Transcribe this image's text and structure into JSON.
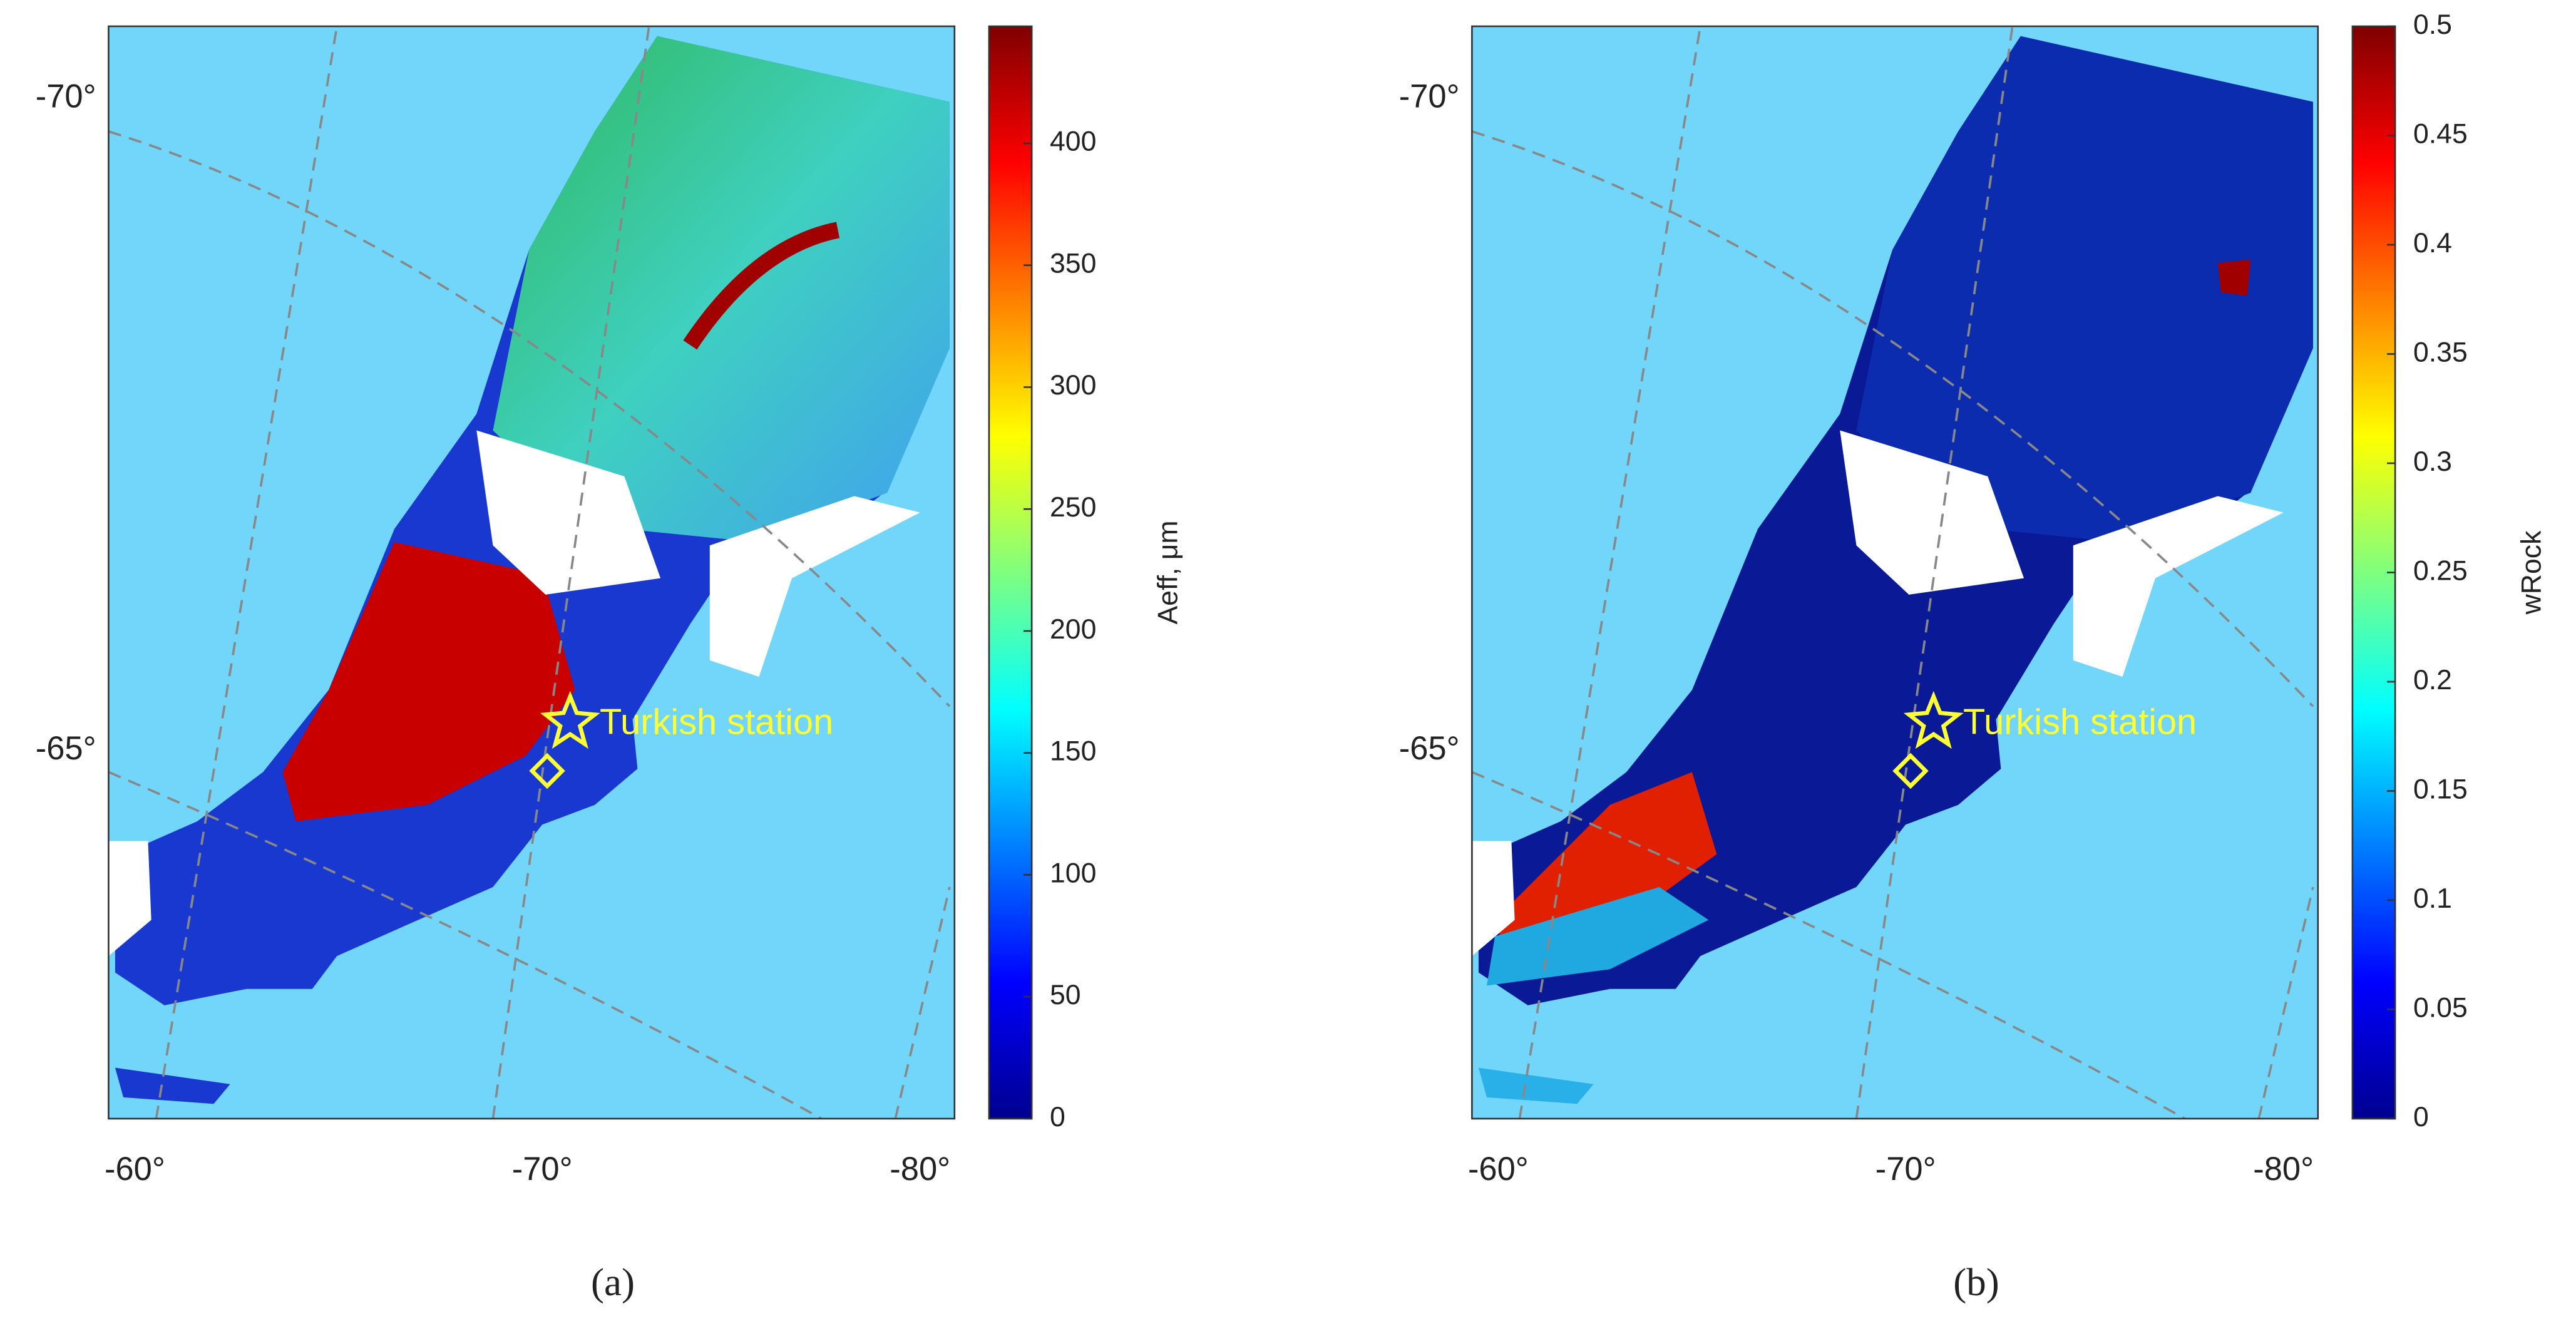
{
  "panels": [
    {
      "caption": "(a)",
      "annotation": "Turkish station",
      "lat_labels": [
        "-70°",
        "-65°"
      ],
      "lon_labels": [
        "-60°",
        "-70°",
        "-80°"
      ],
      "colorbar": {
        "label": "Aeff, μm",
        "range": [
          0,
          448
        ],
        "ticks": [
          0,
          50,
          100,
          150,
          200,
          250,
          300,
          350,
          400
        ]
      }
    },
    {
      "caption": "(b)",
      "annotation": "Turkish station",
      "lat_labels": [
        "-70°",
        "-65°"
      ],
      "lon_labels": [
        "-60°",
        "-70°",
        "-80°"
      ],
      "colorbar": {
        "label": "wRock",
        "range": [
          0,
          0.5
        ],
        "ticks": [
          0,
          0.05,
          0.1,
          0.15,
          0.2,
          0.25,
          0.3,
          0.35,
          0.4,
          0.45,
          0.5
        ]
      }
    }
  ]
}
